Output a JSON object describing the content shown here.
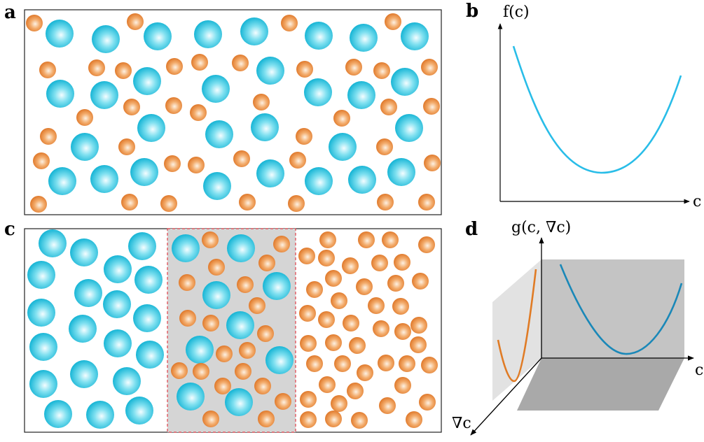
{
  "panels": {
    "a": {
      "label": "a",
      "big_particle_color": "#2ec5e0",
      "small_particle_color": "#e8893c"
    },
    "b": {
      "label": "b",
      "y_axis_label": "f(c)",
      "x_axis_label": "c",
      "curve_color": "#29bde8"
    },
    "c": {
      "label": "c",
      "interface_fill": "#d5d5d5",
      "interface_border": "#e0404a"
    },
    "d": {
      "label": "d",
      "vertical_axis_label": "g(c, ∇c)",
      "x_axis_label": "c",
      "depth_axis_label": "∇c",
      "back_curve_color": "#1a88b8",
      "side_curve_color": "#e07b25"
    }
  }
}
